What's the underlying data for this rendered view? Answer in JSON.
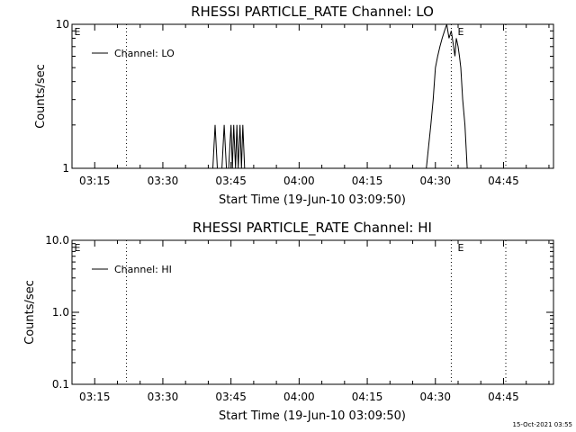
{
  "timestamp": "15-Oct-2021 03:55",
  "chart_data": [
    {
      "type": "line",
      "title": "RHESSI PARTICLE_RATE Channel: LO",
      "xlabel": "Start Time (19-Jun-10 03:09:50)",
      "ylabel": "Counts/sec",
      "x_ticks": [
        "03:15",
        "03:30",
        "03:45",
        "04:00",
        "04:15",
        "04:30",
        "04:45"
      ],
      "x_tick_minutes": [
        15,
        30,
        45,
        60,
        75,
        90,
        105
      ],
      "xlim_minutes": [
        10,
        116
      ],
      "y_scale": "log",
      "ylim": [
        1,
        10
      ],
      "y_ticks": [
        "10",
        "1"
      ],
      "y_tick_values": [
        10,
        1
      ],
      "legend": {
        "position": "top-left",
        "entries": [
          "Channel: LO"
        ]
      },
      "markers": [
        {
          "label": "E",
          "minute": 10.3
        },
        {
          "label": "E",
          "minute": 94.7
        }
      ],
      "vlines_minutes": [
        22,
        93.5,
        105.5
      ],
      "grid": false,
      "series": [
        {
          "name": "Channel: LO",
          "x": [
            41,
            41.5,
            42,
            42.5,
            43,
            43.5,
            44,
            44.5,
            45,
            45.3,
            45.6,
            46,
            46.3,
            46.6,
            47,
            47.3,
            47.6,
            48,
            48.5,
            49,
            80,
            88,
            89,
            89.5,
            90,
            90.5,
            91,
            91.5,
            92,
            92.5,
            93,
            93.5,
            94,
            94.3,
            94.6,
            95,
            95.3,
            95.6,
            96,
            96.5,
            97,
            97.5,
            98,
            99,
            110
          ],
          "y": [
            1,
            2,
            1,
            1,
            1,
            2,
            1,
            1,
            2,
            1,
            2,
            1,
            2,
            1,
            2,
            1,
            2,
            1,
            1,
            1,
            1,
            1,
            2,
            3,
            5,
            6,
            7,
            8,
            9,
            10,
            8,
            9,
            7,
            6,
            8,
            7,
            6,
            5,
            3,
            2,
            1,
            1,
            1,
            1,
            1
          ]
        }
      ]
    },
    {
      "type": "line",
      "title": "RHESSI PARTICLE_RATE Channel: HI",
      "xlabel": "Start Time (19-Jun-10 03:09:50)",
      "ylabel": "Counts/sec",
      "x_ticks": [
        "03:15",
        "03:30",
        "03:45",
        "04:00",
        "04:15",
        "04:30",
        "04:45"
      ],
      "x_tick_minutes": [
        15,
        30,
        45,
        60,
        75,
        90,
        105
      ],
      "xlim_minutes": [
        10,
        116
      ],
      "y_scale": "log",
      "ylim": [
        0.1,
        10
      ],
      "y_ticks": [
        "10.0",
        "1.0",
        "0.1"
      ],
      "y_tick_values": [
        10,
        1,
        0.1
      ],
      "legend": {
        "position": "top-left",
        "entries": [
          "Channel: HI"
        ]
      },
      "markers": [
        {
          "label": "E",
          "minute": 10.3
        },
        {
          "label": "E",
          "minute": 94.7
        }
      ],
      "vlines_minutes": [
        22,
        93.5,
        105.5
      ],
      "grid": false,
      "series": [
        {
          "name": "Channel: HI",
          "x": [],
          "y": []
        }
      ]
    }
  ]
}
